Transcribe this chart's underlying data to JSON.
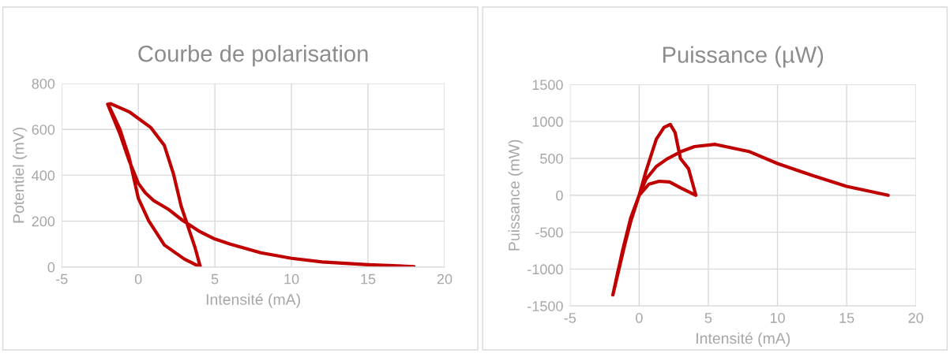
{
  "chart_data": [
    {
      "type": "line",
      "title": "Courbe de polarisation",
      "xlabel": "Intensité (mA)",
      "ylabel": "Potentiel (mV)",
      "xlim": [
        -5,
        20
      ],
      "xticks": [
        -5,
        0,
        5,
        10,
        15,
        20
      ],
      "ylim": [
        0,
        800
      ],
      "yticks": [
        0,
        200,
        400,
        600,
        800
      ],
      "grid": true,
      "legend": false,
      "series": [
        {
          "color": "#c00000",
          "x": [
            18,
            15,
            12,
            10,
            8,
            6,
            5,
            4,
            2.9,
            2,
            1,
            0.46,
            0,
            -0.6,
            -1.2,
            -2,
            -1.8,
            -0.6,
            0.82,
            1.7,
            2.3,
            2.8,
            3.7,
            4.05,
            3,
            1.7,
            0.67,
            0,
            -0.6,
            -1.2,
            -1.9
          ],
          "values": [
            2,
            10,
            22,
            38,
            62,
            100,
            122,
            155,
            203,
            250,
            290,
            323,
            365,
            464,
            580,
            710,
            712,
            677,
            608,
            530,
            405,
            265,
            86,
            0,
            35,
            96,
            203,
            300,
            478,
            600,
            700
          ]
        }
      ]
    },
    {
      "type": "line",
      "title": "Puissance (µW)",
      "xlabel": "Intensité (mA)",
      "ylabel": "Puissance (mW)",
      "xlim": [
        -5,
        20
      ],
      "xticks": [
        -5,
        0,
        5,
        10,
        15,
        20
      ],
      "ylim": [
        -1500,
        1500
      ],
      "yticks": [
        -1500,
        -1000,
        -500,
        0,
        500,
        1000,
        1500
      ],
      "grid": true,
      "legend": false,
      "series": [
        {
          "color": "#c00000",
          "x": [
            18,
            15,
            12.5,
            10,
            8,
            5.5,
            4,
            3,
            2,
            1.24,
            0.5,
            0,
            -0.6,
            -1.2,
            -1.9,
            -1.5,
            -0.6,
            0,
            0.5,
            1.24,
            1.8,
            2.25,
            2.6,
            2.98,
            3.57,
            4.1,
            3,
            2.2,
            1.44,
            0.7,
            0,
            -0.6,
            -1.9
          ],
          "values": [
            0,
            120,
            270,
            430,
            590,
            690,
            660,
            590,
            490,
            390,
            220,
            0,
            -300,
            -750,
            -1350,
            -1000,
            -350,
            0,
            330,
            760,
            920,
            960,
            850,
            500,
            360,
            0,
            100,
            180,
            190,
            150,
            0,
            -320,
            -1350
          ]
        }
      ]
    }
  ]
}
